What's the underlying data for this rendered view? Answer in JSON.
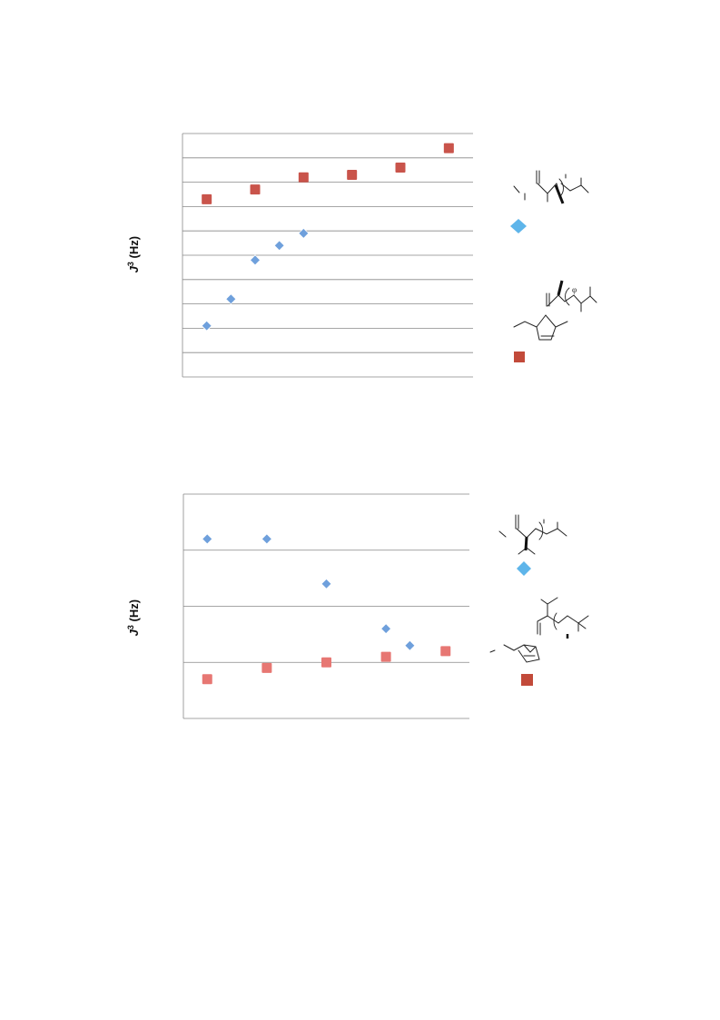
{
  "chart_data": [
    {
      "type": "scatter",
      "ylabel_symbol": "J",
      "ylabel_superscript": "3",
      "ylabel_unit": "(Hz)",
      "grid": true,
      "xlim": [
        0,
        12
      ],
      "ylim": [
        0,
        10
      ],
      "series": [
        {
          "color": "#6fa0dc",
          "marker": "diamond",
          "x": [
            1,
            2,
            3,
            4,
            5
          ],
          "y": [
            2.1,
            3.2,
            4.8,
            5.4,
            5.9
          ]
        },
        {
          "color": "#c9544b",
          "marker": "square",
          "x": [
            1,
            3,
            5,
            7,
            9,
            11
          ],
          "y": [
            7.3,
            7.7,
            8.2,
            8.3,
            8.6,
            9.4
          ]
        }
      ],
      "legend": [
        {
          "series": 0,
          "color": "#5eb5ea",
          "marker": "diamond",
          "structure_label": "φ"
        },
        {
          "series": 1,
          "color": "#c24a3a",
          "marker": "square",
          "structure_label": "φ"
        }
      ]
    },
    {
      "type": "scatter",
      "ylabel_symbol": "J",
      "ylabel_superscript": "3",
      "ylabel_unit": "(Hz)",
      "grid": true,
      "xlim": [
        0,
        12
      ],
      "ylim": [
        0,
        4
      ],
      "series": [
        {
          "color": "#6fa0dc",
          "marker": "diamond",
          "x": [
            1,
            3.5,
            6,
            8.5,
            9.5
          ],
          "y": [
            3.2,
            3.2,
            2.4,
            1.6,
            1.3
          ]
        },
        {
          "color": "#e77773",
          "marker": "square",
          "x": [
            1,
            3.5,
            6,
            8.5,
            11
          ],
          "y": [
            0.7,
            0.9,
            1.0,
            1.1,
            1.2
          ]
        }
      ],
      "legend": [
        {
          "series": 0,
          "color": "#5eb5ea",
          "marker": "diamond"
        },
        {
          "series": 1,
          "color": "#c24a3a",
          "marker": "square"
        }
      ]
    }
  ]
}
